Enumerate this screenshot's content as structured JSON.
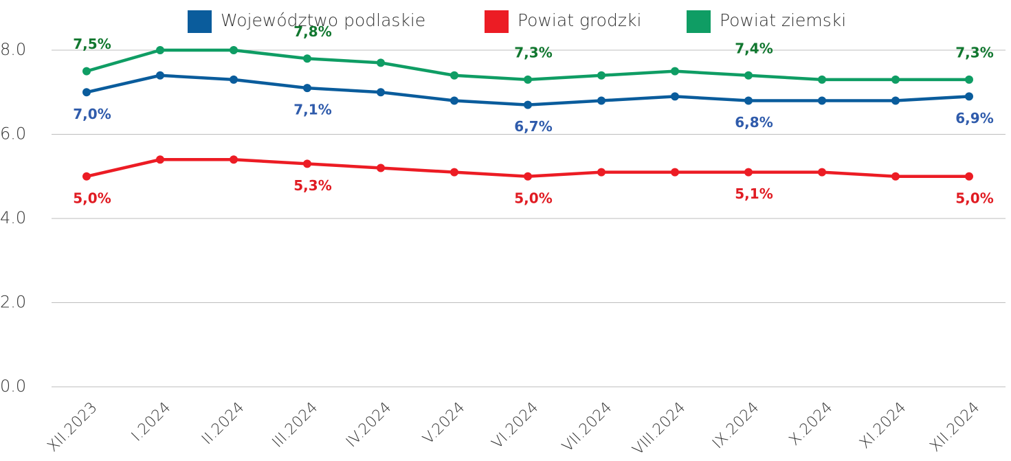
{
  "chart_data": {
    "type": "line",
    "categories": [
      "XII.2023",
      "I.2024",
      "II.2024",
      "III.2024",
      "IV.2024",
      "V.2024",
      "VI.2024",
      "VII.2024",
      "VIII.2024",
      "IX.2024",
      "X.2024",
      "XI.2024",
      "XII.2024"
    ],
    "ylim": [
      0,
      8
    ],
    "yticks": [
      {
        "value": 0,
        "label": "0.0"
      },
      {
        "value": 2,
        "label": "2.0"
      },
      {
        "value": 4,
        "label": "4.0"
      },
      {
        "value": 6,
        "label": "6.0"
      },
      {
        "value": 8,
        "label": "8.0"
      }
    ],
    "grid": true,
    "legend": "top",
    "series": [
      {
        "name": "Województwo podlaskie",
        "color": "#0a5c9c",
        "label_color": "#2f5bab",
        "label_position": "below",
        "values": [
          7.0,
          7.4,
          7.3,
          7.1,
          7.0,
          6.8,
          6.7,
          6.8,
          6.9,
          6.8,
          6.8,
          6.8,
          6.9
        ],
        "value_labels": [
          "7,0%",
          null,
          null,
          "7,1%",
          null,
          null,
          "6,7%",
          null,
          null,
          "6,8%",
          null,
          null,
          "6,9%"
        ]
      },
      {
        "name": "Powiat grodzki",
        "color": "#ec1c24",
        "label_color": "#e01b22",
        "label_position": "below",
        "values": [
          5.0,
          5.4,
          5.4,
          5.3,
          5.2,
          5.1,
          5.0,
          5.1,
          5.1,
          5.1,
          5.1,
          5.0,
          5.0
        ],
        "value_labels": [
          "5,0%",
          null,
          null,
          "5,3%",
          null,
          null,
          "5,0%",
          null,
          null,
          "5,1%",
          null,
          null,
          "5,0%"
        ]
      },
      {
        "name": "Powiat ziemski",
        "color": "#0f9d64",
        "label_color": "#11772f",
        "label_position": "above",
        "values": [
          7.5,
          8.0,
          8.0,
          7.8,
          7.7,
          7.4,
          7.3,
          7.4,
          7.5,
          7.4,
          7.3,
          7.3,
          7.3
        ],
        "value_labels": [
          "7,5%",
          null,
          null,
          "7,8%",
          null,
          null,
          "7,3%",
          null,
          null,
          "7,4%",
          null,
          null,
          "7,3%"
        ]
      }
    ]
  }
}
